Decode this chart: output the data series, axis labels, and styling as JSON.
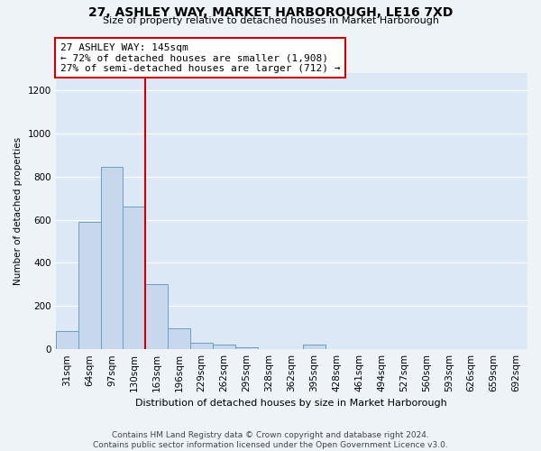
{
  "title": "27, ASHLEY WAY, MARKET HARBOROUGH, LE16 7XD",
  "subtitle": "Size of property relative to detached houses in Market Harborough",
  "xlabel": "Distribution of detached houses by size in Market Harborough",
  "ylabel": "Number of detached properties",
  "categories": [
    "31sqm",
    "64sqm",
    "97sqm",
    "130sqm",
    "163sqm",
    "196sqm",
    "229sqm",
    "262sqm",
    "295sqm",
    "328sqm",
    "362sqm",
    "395sqm",
    "428sqm",
    "461sqm",
    "494sqm",
    "527sqm",
    "560sqm",
    "593sqm",
    "626sqm",
    "659sqm",
    "692sqm"
  ],
  "values": [
    85,
    590,
    845,
    660,
    300,
    95,
    30,
    20,
    8,
    0,
    0,
    20,
    0,
    0,
    0,
    0,
    0,
    0,
    0,
    0,
    0
  ],
  "bar_color": "#c8d8ec",
  "bar_edge_color": "#6a9fc8",
  "vline_color": "#cc0000",
  "annotation_text": "27 ASHLEY WAY: 145sqm\n← 72% of detached houses are smaller (1,908)\n27% of semi-detached houses are larger (712) →",
  "annotation_box_color": "#ffffff",
  "annotation_box_edge_color": "#cc0000",
  "footer1": "Contains HM Land Registry data © Crown copyright and database right 2024.",
  "footer2": "Contains public sector information licensed under the Open Government Licence v3.0.",
  "ylim": [
    0,
    1280
  ],
  "yticks": [
    0,
    200,
    400,
    600,
    800,
    1000,
    1200
  ],
  "bg_color": "#eef3f8",
  "plot_bg_color": "#dce8f5",
  "title_fontsize": 10,
  "subtitle_fontsize": 8,
  "xlabel_fontsize": 8,
  "ylabel_fontsize": 7.5,
  "tick_fontsize": 7.5,
  "footer_fontsize": 6.5
}
